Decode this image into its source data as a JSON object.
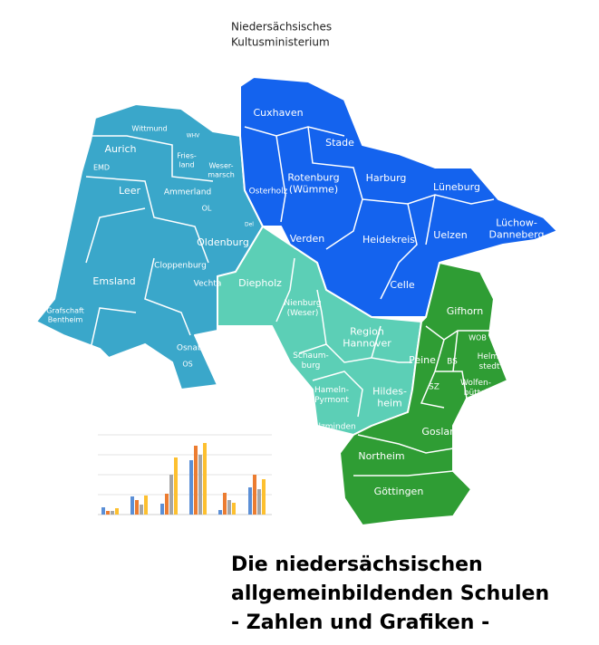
{
  "header": {
    "lines": [
      "Niedersächsisches",
      "Kultusministerium"
    ]
  },
  "nodes": [
    {
      "lines": [
        "Wittmund"
      ]
    },
    {
      "lines": [
        "WHV"
      ]
    },
    {
      "lines": [
        "Aurich"
      ]
    },
    {
      "lines": [
        "Fries-",
        "land"
      ]
    },
    {
      "lines": [
        "EMD"
      ]
    },
    {
      "lines": [
        "Weser-",
        "marsch"
      ]
    },
    {
      "lines": [
        "Leer"
      ]
    },
    {
      "lines": [
        "Ammerland"
      ]
    },
    {
      "lines": [
        "OL"
      ]
    },
    {
      "lines": [
        "Del"
      ]
    },
    {
      "lines": [
        "Oldenburg"
      ]
    },
    {
      "lines": [
        "Emsland"
      ]
    },
    {
      "lines": [
        "Cloppenburg"
      ]
    },
    {
      "lines": [
        "Vechta"
      ]
    },
    {
      "lines": [
        "Grafschaft",
        "Bentheim"
      ]
    },
    {
      "lines": [
        "Osnabrück"
      ]
    },
    {
      "lines": [
        "OS"
      ]
    },
    {
      "lines": [
        "Cuxhaven"
      ]
    },
    {
      "lines": [
        "Stade"
      ]
    },
    {
      "lines": [
        "Osterholz"
      ]
    },
    {
      "lines": [
        "Rotenburg",
        "(Wümme)"
      ]
    },
    {
      "lines": [
        "Verden"
      ]
    },
    {
      "lines": [
        "Harburg"
      ]
    },
    {
      "lines": [
        "Lüneburg"
      ]
    },
    {
      "lines": [
        "Heidekreis"
      ]
    },
    {
      "lines": [
        "Uelzen"
      ]
    },
    {
      "lines": [
        "Lüchow-",
        "Danneberg"
      ]
    },
    {
      "lines": [
        "Celle"
      ]
    },
    {
      "lines": [
        "Diepholz"
      ]
    },
    {
      "lines": [
        "Nienburg",
        "(Weser)"
      ]
    },
    {
      "lines": [
        "Region",
        "Hannover"
      ]
    },
    {
      "lines": [
        "Schaum-",
        "burg"
      ]
    },
    {
      "lines": [
        "Hameln-",
        "Pyrmont"
      ]
    },
    {
      "lines": [
        "Hildes-",
        "heim"
      ]
    },
    {
      "lines": [
        "Holzminden"
      ]
    },
    {
      "lines": [
        "Gifhorn"
      ]
    },
    {
      "lines": [
        "WOB"
      ]
    },
    {
      "lines": [
        "Peine"
      ]
    },
    {
      "lines": [
        "BS"
      ]
    },
    {
      "lines": [
        "Helm-",
        "stedt"
      ]
    },
    {
      "lines": [
        "SZ"
      ]
    },
    {
      "lines": [
        "Wolfen-",
        "büttel"
      ]
    },
    {
      "lines": [
        "Goslar"
      ]
    },
    {
      "lines": [
        "Northeim"
      ]
    },
    {
      "lines": [
        "Göttingen"
      ]
    }
  ],
  "title": {
    "lines": [
      "Die niedersächsischen",
      "allgemeinbildenden Schulen",
      "- Zahlen und Grafiken -"
    ]
  }
}
